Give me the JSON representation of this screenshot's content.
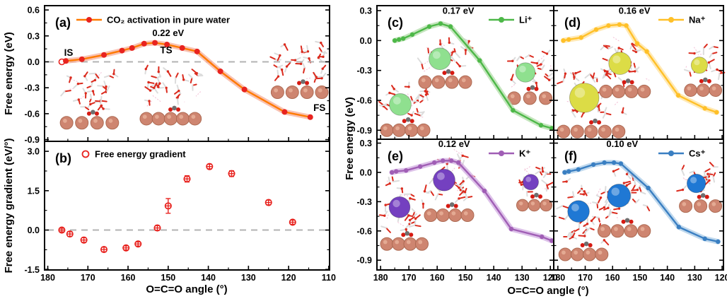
{
  "figure": {
    "background": "#ffffff",
    "axes_titles": {
      "x_left": "O=C=O angle (°)",
      "x_right": "O=C=O angle (°)",
      "y_a": "Free energy (eV)",
      "y_b": "Free energy gradient (eV/°)",
      "y_right": "Free energy (eV)"
    }
  },
  "chart_data": [
    {
      "id": "a",
      "type": "line",
      "panel_label": "(a)",
      "title": "CO₂ activation in pure water",
      "legend": {
        "style": "line-dot",
        "text": "CO₂ activation in pure water",
        "position": "top-left"
      },
      "colors": {
        "line": "#FF7A00",
        "marker": "#E8231F",
        "band": "#F6B3A0"
      },
      "x": [
        176.5,
        175.5,
        171.5,
        166,
        161.5,
        159,
        156,
        153.3,
        150.3,
        146.5,
        142.8,
        137,
        131,
        121,
        114.6
      ],
      "y": [
        0.0,
        0.01,
        0.03,
        0.08,
        0.13,
        0.16,
        0.21,
        0.22,
        0.2,
        0.16,
        0.12,
        -0.11,
        -0.32,
        -0.58,
        -0.64
      ],
      "open_first_marker": true,
      "zero_line": true,
      "xlim": [
        180.8,
        109.8
      ],
      "ylim": [
        -0.92,
        0.65
      ],
      "xticks": [
        180,
        170,
        160,
        150,
        140,
        130,
        120,
        110
      ],
      "x_minor_step": 5,
      "show_x_labels": false,
      "yticks": [
        0.6,
        0.3,
        0.0,
        -0.3,
        -0.6,
        -0.9
      ],
      "y_minor_step": 0.15,
      "annotations": [
        {
          "text": "0.22 eV",
          "x": 150,
          "y": 0.3
        },
        {
          "text": "IS",
          "x": 174.8,
          "y": 0.07
        },
        {
          "text": "TS",
          "x": 150.5,
          "y": 0.1
        },
        {
          "text": "FS",
          "x": 112.3,
          "y": -0.57
        }
      ],
      "ion_color": null,
      "insets": [
        {
          "x": 0.055,
          "y": 0.47,
          "w": 0.205,
          "h": 0.44,
          "seed": 3
        },
        {
          "x": 0.335,
          "y": 0.45,
          "w": 0.215,
          "h": 0.43,
          "seed": 7
        },
        {
          "x": 0.795,
          "y": 0.255,
          "w": 0.2,
          "h": 0.43,
          "seed": 11
        }
      ]
    },
    {
      "id": "b",
      "type": "scatter",
      "panel_label": "(b)",
      "title": "Free energy gradient",
      "legend": {
        "style": "open-circle",
        "text": "Free energy gradient",
        "position": "top-left"
      },
      "colors": {
        "line": "#E8231F",
        "marker": "#E8231F",
        "band": null
      },
      "x": [
        176.5,
        174.5,
        171,
        166,
        160.5,
        157.5,
        152.7,
        150,
        145.3,
        139.7,
        134.2,
        125,
        119
      ],
      "y": [
        0.0,
        -0.15,
        -0.38,
        -0.74,
        -0.68,
        -0.53,
        0.08,
        0.92,
        1.95,
        2.42,
        2.15,
        1.05,
        0.3
      ],
      "yerr": [
        0.07,
        0.09,
        0.09,
        0.09,
        0.08,
        0.08,
        0.09,
        0.28,
        0.12,
        0.09,
        0.11,
        0.09,
        0.08
      ],
      "zero_line": true,
      "xlim": [
        180.8,
        109.8
      ],
      "ylim": [
        -1.52,
        3.38
      ],
      "xticks": [
        180,
        170,
        160,
        150,
        140,
        130,
        120,
        110
      ],
      "x_minor_step": 5,
      "show_x_labels": true,
      "yticks": [
        3.0,
        1.5,
        0.0,
        -1.5
      ],
      "y_minor_step": 0.75,
      "annotations": [],
      "ion_color": null,
      "insets": []
    },
    {
      "id": "c",
      "type": "line",
      "panel_label": "(c)",
      "title": "Li⁺",
      "legend": {
        "style": "line-dot",
        "text": "Li⁺",
        "position": "top-right"
      },
      "colors": {
        "line": "#4DB848",
        "marker": "#4DB848",
        "band": "#B5DFAC"
      },
      "x": [
        175,
        173.5,
        172,
        168.8,
        162.8,
        158.8,
        155.3,
        145,
        133.2,
        123.3,
        119.5
      ],
      "y": [
        0.0,
        0.01,
        0.02,
        0.06,
        0.14,
        0.17,
        0.14,
        -0.2,
        -0.7,
        -0.85,
        -0.88
      ],
      "zero_line": false,
      "xlim": [
        181.3,
        118.8
      ],
      "ylim": [
        -0.99,
        0.35
      ],
      "xticks": [
        180,
        170,
        160,
        150,
        140,
        130,
        120
      ],
      "x_minor_step": 5,
      "show_x_labels": false,
      "yticks": [
        0.3,
        0.0,
        -0.3,
        -0.6,
        -0.9
      ],
      "y_minor_step": 0.15,
      "annotations": [
        {
          "text": "0.17 eV",
          "x": 152.5,
          "y": 0.27
        }
      ],
      "ion_color": "#8FE08F",
      "insets": [
        {
          "x": 0.02,
          "y": 0.58,
          "w": 0.28,
          "h": 0.4,
          "seed": 21
        },
        {
          "x": 0.236,
          "y": 0.25,
          "w": 0.3,
          "h": 0.37,
          "seed": 22
        },
        {
          "x": 0.74,
          "y": 0.34,
          "w": 0.25,
          "h": 0.4,
          "seed": 23
        }
      ]
    },
    {
      "id": "d",
      "type": "line",
      "panel_label": "(d)",
      "title": "Na⁺",
      "legend": {
        "style": "line-dot",
        "text": "Na⁺",
        "position": "top-right"
      },
      "colors": {
        "line": "#FFC028",
        "marker": "#FFC028",
        "band": "#FFE3A3"
      },
      "x": [
        178,
        176,
        171.5,
        166,
        161.5,
        157.5,
        155,
        151,
        147.5,
        136,
        126.3,
        122
      ],
      "y": [
        0.0,
        0.01,
        0.03,
        0.11,
        0.15,
        0.16,
        0.15,
        -0.03,
        -0.11,
        -0.55,
        -0.68,
        -0.72
      ],
      "zero_line": false,
      "xlim": [
        181.5,
        119.5
      ],
      "ylim": [
        -0.99,
        0.35
      ],
      "xticks": [
        180,
        170,
        160,
        150,
        140,
        130,
        120
      ],
      "x_minor_step": 5,
      "show_x_labels": false,
      "yticks": [
        0.3,
        0.0,
        -0.3,
        -0.6,
        -0.9
      ],
      "y_minor_step": 0.15,
      "annotations": [
        {
          "text": "0.16 eV",
          "x": 152,
          "y": 0.27
        }
      ],
      "ion_color": "#DCDC46",
      "insets": [
        {
          "x": 0.02,
          "y": 0.49,
          "w": 0.4,
          "h": 0.5,
          "seed": 31
        },
        {
          "x": 0.27,
          "y": 0.26,
          "w": 0.3,
          "h": 0.43,
          "seed": 32
        },
        {
          "x": 0.77,
          "y": 0.29,
          "w": 0.22,
          "h": 0.39,
          "seed": 33
        }
      ]
    },
    {
      "id": "e",
      "type": "line",
      "panel_label": "(e)",
      "title": "K⁺",
      "legend": {
        "style": "line-dot",
        "text": "K⁺",
        "position": "top-right"
      },
      "colors": {
        "line": "#A05EB5",
        "marker": "#A05EB5",
        "band": "#D5B3E3"
      },
      "x": [
        176,
        174.5,
        171,
        166,
        161,
        158,
        155,
        152.5,
        143.3,
        133.8,
        123,
        119.5
      ],
      "y": [
        0.0,
        0.01,
        0.02,
        0.06,
        0.1,
        0.12,
        0.12,
        0.1,
        -0.19,
        -0.58,
        -0.66,
        -0.7
      ],
      "zero_line": false,
      "xlim": [
        181.3,
        118.8
      ],
      "ylim": [
        -1.0,
        0.34
      ],
      "xticks": [
        180,
        170,
        160,
        150,
        140,
        130,
        120
      ],
      "x_minor_step": 5,
      "show_x_labels": true,
      "yticks": [
        0.3,
        0.0,
        -0.3,
        -0.6,
        -0.9
      ],
      "y_minor_step": 0.15,
      "annotations": [
        {
          "text": "0.12 eV",
          "x": 154,
          "y": 0.26
        }
      ],
      "ion_color": "#7440C0",
      "insets": [
        {
          "x": 0.02,
          "y": 0.3,
          "w": 0.27,
          "h": 0.55,
          "seed": 41
        },
        {
          "x": 0.268,
          "y": 0.1,
          "w": 0.28,
          "h": 0.53,
          "seed": 42
        },
        {
          "x": 0.79,
          "y": 0.18,
          "w": 0.2,
          "h": 0.37,
          "seed": 43
        }
      ]
    },
    {
      "id": "f",
      "type": "line",
      "panel_label": "(f)",
      "title": "Cs⁺",
      "legend": {
        "style": "line-dot",
        "text": "Cs⁺",
        "position": "top-right"
      },
      "colors": {
        "line": "#3A7FC2",
        "marker": "#3A7FC2",
        "band": "#AFCEE9"
      },
      "x": [
        177.5,
        176,
        172.5,
        167,
        163,
        159.5,
        157,
        147,
        135.8,
        126.3,
        121.5
      ],
      "y": [
        0.0,
        0.01,
        0.03,
        0.08,
        0.1,
        0.1,
        0.09,
        -0.16,
        -0.56,
        -0.68,
        -0.71
      ],
      "zero_line": false,
      "xlim": [
        181.5,
        119.5
      ],
      "ylim": [
        -1.0,
        0.34
      ],
      "xticks": [
        180,
        170,
        160,
        150,
        140,
        130,
        120
      ],
      "x_minor_step": 5,
      "show_x_labels": true,
      "yticks": [
        0.3,
        0.0,
        -0.3,
        -0.6,
        -0.9
      ],
      "y_minor_step": 0.15,
      "annotations": [
        {
          "text": "0.10 eV",
          "x": 156.5,
          "y": 0.26
        }
      ],
      "ion_color": "#1F78D4",
      "insets": [
        {
          "x": 0.03,
          "y": 0.3,
          "w": 0.29,
          "h": 0.63,
          "seed": 51
        },
        {
          "x": 0.26,
          "y": 0.22,
          "w": 0.31,
          "h": 0.53,
          "seed": 52
        },
        {
          "x": 0.74,
          "y": 0.19,
          "w": 0.25,
          "h": 0.37,
          "seed": 53
        }
      ]
    }
  ]
}
